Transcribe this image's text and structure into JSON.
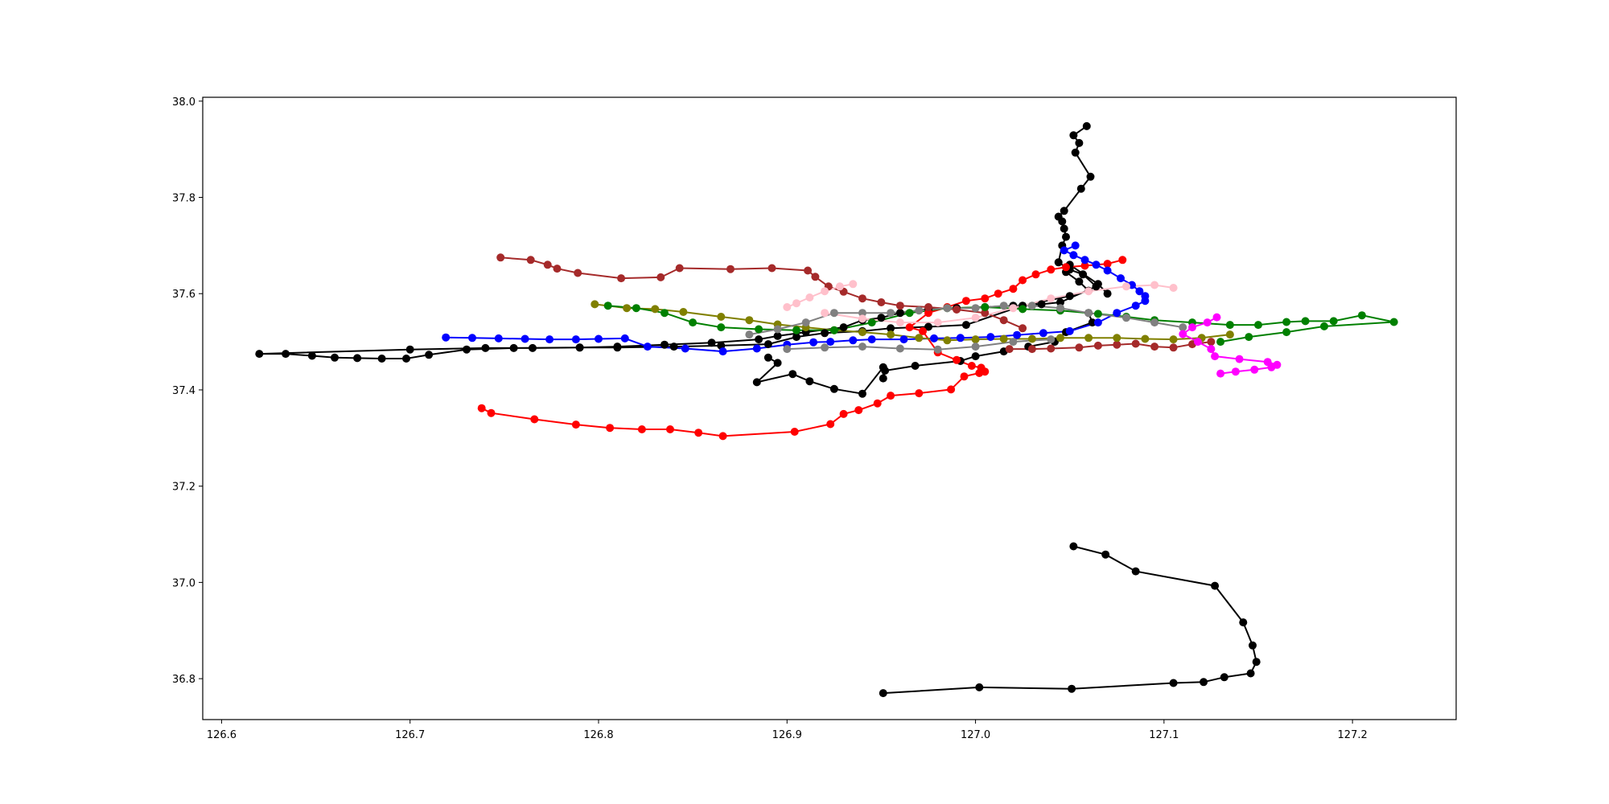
{
  "chart_data": {
    "type": "line",
    "title": "",
    "xlabel": "",
    "ylabel": "",
    "xlim": [
      126.59,
      127.255
    ],
    "ylim": [
      36.715,
      38.008
    ],
    "xticks": [
      126.6,
      126.7,
      126.8,
      126.9,
      127.0,
      127.1,
      127.2
    ],
    "yticks": [
      36.8,
      37.0,
      37.2,
      37.4,
      37.6,
      37.8,
      38.0
    ],
    "xtick_labels": [
      "126.6",
      "126.7",
      "126.8",
      "126.9",
      "127.0",
      "127.1",
      "127.2"
    ],
    "ytick_labels": [
      "36.8",
      "37.0",
      "37.2",
      "37.4",
      "37.6",
      "37.8",
      "38.0"
    ],
    "grid": false,
    "legend": "none",
    "series": [
      {
        "color": "#000000",
        "x": [
          127.059,
          127.052,
          127.055,
          127.053,
          127.061,
          127.056,
          127.047,
          127.044,
          127.046,
          127.047,
          127.048,
          127.046,
          127.044,
          127.05,
          127.057,
          127.064,
          127.045,
          127.035,
          127.02,
          127.005,
          126.99,
          126.975,
          126.96,
          126.95,
          126.94,
          126.93,
          126.91,
          126.895,
          126.885,
          126.86,
          126.835,
          126.81,
          126.79,
          126.765,
          126.74,
          126.7,
          126.62,
          126.634,
          126.648,
          126.66,
          126.672,
          126.685,
          126.698,
          126.71,
          126.73,
          126.755,
          126.79,
          126.81,
          126.84,
          126.865,
          126.89,
          126.905,
          126.92,
          126.94,
          126.955,
          126.975,
          126.995,
          127.025,
          127.05,
          127.06,
          127.055,
          127.048,
          127.05,
          127.065,
          127.07,
          127.06,
          127.062,
          127.048,
          127.042,
          127.028,
          127.015,
          127.0,
          126.992,
          126.968,
          126.952,
          126.951,
          126.951,
          126.94,
          126.925,
          126.912,
          126.903,
          126.884,
          126.895,
          126.89,
          126.951,
          127.002,
          127.051,
          127.105,
          127.121,
          127.132,
          127.146,
          127.149,
          127.147,
          127.142,
          127.127,
          127.085,
          127.069,
          127.052
        ],
        "y": [
          37.948,
          37.929,
          37.913,
          37.893,
          37.843,
          37.818,
          37.772,
          37.76,
          37.75,
          37.735,
          37.718,
          37.7,
          37.665,
          37.65,
          37.64,
          37.615,
          37.582,
          37.578,
          37.575,
          37.572,
          37.57,
          37.568,
          37.56,
          37.55,
          37.545,
          37.53,
          37.52,
          37.512,
          37.505,
          37.498,
          37.494,
          37.49,
          37.488,
          37.487,
          37.487,
          37.484,
          37.475,
          37.475,
          37.471,
          37.467,
          37.466,
          37.465,
          37.465,
          37.473,
          37.484,
          37.487,
          37.488,
          37.488,
          37.49,
          37.492,
          37.495,
          37.51,
          37.518,
          37.522,
          37.528,
          37.531,
          37.535,
          37.575,
          37.595,
          37.606,
          37.625,
          37.645,
          37.66,
          37.62,
          37.6,
          37.56,
          37.54,
          37.52,
          37.5,
          37.49,
          37.48,
          37.47,
          37.46,
          37.45,
          37.44,
          37.424,
          37.447,
          37.392,
          37.402,
          37.418,
          37.433,
          37.416,
          37.456,
          37.467,
          36.77,
          36.782,
          36.779,
          36.791,
          36.793,
          36.803,
          36.811,
          36.835,
          36.869,
          36.917,
          36.993,
          37.023,
          37.058,
          37.075
        ],
        "segments": [
          [
            0,
            65
          ],
          [
            65,
            70
          ],
          [
            70,
            84
          ],
          [
            84,
            98
          ]
        ]
      },
      {
        "color": "#ff0000",
        "x": [
          126.738,
          126.743,
          126.766,
          126.788,
          126.806,
          126.823,
          126.838,
          126.853,
          126.866,
          126.904,
          126.923,
          126.93,
          126.938,
          126.948,
          126.955,
          126.97,
          126.987,
          126.994,
          127.002,
          127.005,
          127.003,
          126.998,
          126.99,
          126.98,
          126.972,
          126.965,
          126.975,
          126.985,
          126.995,
          127.005,
          127.012,
          127.02,
          127.025,
          127.032,
          127.04,
          127.048,
          127.058,
          127.07,
          127.078
        ],
        "y": [
          37.362,
          37.352,
          37.339,
          37.328,
          37.321,
          37.318,
          37.318,
          37.311,
          37.304,
          37.313,
          37.329,
          37.35,
          37.358,
          37.372,
          37.388,
          37.393,
          37.401,
          37.428,
          37.435,
          37.438,
          37.446,
          37.45,
          37.462,
          37.478,
          37.522,
          37.53,
          37.56,
          37.572,
          37.585,
          37.59,
          37.6,
          37.61,
          37.628,
          37.64,
          37.65,
          37.655,
          37.658,
          37.662,
          37.67
        ],
        "segments": [
          [
            0,
            39
          ]
        ]
      },
      {
        "color": "#0000ff",
        "x": [
          126.719,
          126.733,
          126.747,
          126.761,
          126.774,
          126.788,
          126.8,
          126.814,
          126.826,
          126.846,
          126.866,
          126.884,
          126.9,
          126.914,
          126.923,
          126.935,
          126.945,
          126.962,
          126.978,
          126.992,
          127.008,
          127.022,
          127.036,
          127.05,
          127.065,
          127.075,
          127.085,
          127.09,
          127.09,
          127.087,
          127.083,
          127.077,
          127.07,
          127.064,
          127.058,
          127.052,
          127.047,
          127.053
        ],
        "y": [
          37.509,
          37.508,
          37.507,
          37.506,
          37.505,
          37.505,
          37.506,
          37.507,
          37.49,
          37.486,
          37.48,
          37.486,
          37.494,
          37.499,
          37.5,
          37.503,
          37.505,
          37.505,
          37.507,
          37.508,
          37.51,
          37.514,
          37.518,
          37.522,
          37.54,
          37.56,
          37.575,
          37.585,
          37.595,
          37.605,
          37.618,
          37.632,
          37.648,
          37.66,
          37.67,
          37.68,
          37.69,
          37.7
        ],
        "segments": [
          [
            0,
            38
          ]
        ]
      },
      {
        "color": "#a52a2a",
        "x": [
          126.748,
          126.764,
          126.773,
          126.778,
          126.789,
          126.812,
          126.833,
          126.843,
          126.87,
          126.892,
          126.911,
          126.915,
          126.922,
          126.93,
          126.94,
          126.95,
          126.96,
          126.975,
          126.99,
          127.005,
          127.015,
          127.025,
          127.018,
          127.03,
          127.04,
          127.055,
          127.065,
          127.075,
          127.085,
          127.095,
          127.105,
          127.115,
          127.125
        ],
        "y": [
          37.675,
          37.67,
          37.66,
          37.652,
          37.643,
          37.632,
          37.634,
          37.653,
          37.651,
          37.653,
          37.648,
          37.635,
          37.615,
          37.604,
          37.59,
          37.582,
          37.575,
          37.572,
          37.567,
          37.56,
          37.545,
          37.528,
          37.485,
          37.485,
          37.486,
          37.488,
          37.492,
          37.494,
          37.496,
          37.49,
          37.488,
          37.495,
          37.5
        ],
        "segments": [
          [
            0,
            22
          ],
          [
            22,
            33
          ]
        ]
      },
      {
        "color": "#808000",
        "x": [
          126.798,
          126.815,
          126.83,
          126.845,
          126.865,
          126.88,
          126.895,
          126.91,
          126.925,
          126.94,
          126.955,
          126.97,
          126.985,
          127.0,
          127.015,
          127.03,
          127.045,
          127.06,
          127.075,
          127.09,
          127.105,
          127.12,
          127.135
        ],
        "y": [
          37.578,
          37.57,
          37.568,
          37.562,
          37.552,
          37.545,
          37.536,
          37.53,
          37.524,
          37.52,
          37.515,
          37.508,
          37.503,
          37.505,
          37.506,
          37.506,
          37.508,
          37.508,
          37.508,
          37.506,
          37.505,
          37.508,
          37.515
        ],
        "segments": [
          [
            0,
            23
          ]
        ]
      },
      {
        "color": "#008000",
        "x": [
          126.805,
          126.82,
          126.835,
          126.85,
          126.865,
          126.885,
          126.905,
          126.925,
          126.945,
          126.965,
          126.985,
          127.005,
          127.025,
          127.045,
          127.065,
          127.08,
          127.095,
          127.115,
          127.135,
          127.15,
          127.165,
          127.175,
          127.19,
          127.205,
          127.222,
          127.185,
          127.165,
          127.145,
          127.13
        ],
        "y": [
          37.575,
          37.57,
          37.56,
          37.54,
          37.53,
          37.526,
          37.524,
          37.524,
          37.54,
          37.56,
          37.57,
          37.572,
          37.568,
          37.565,
          37.558,
          37.552,
          37.545,
          37.54,
          37.535,
          37.535,
          37.541,
          37.543,
          37.543,
          37.555,
          37.541,
          37.532,
          37.52,
          37.51,
          37.5
        ],
        "segments": [
          [
            0,
            25
          ],
          [
            24,
            29
          ]
        ]
      },
      {
        "color": "#808080",
        "x": [
          126.88,
          126.895,
          126.91,
          126.925,
          126.94,
          126.955,
          126.97,
          126.985,
          127.0,
          127.015,
          127.03,
          127.045,
          127.06,
          127.08,
          127.095,
          127.11,
          126.9,
          126.92,
          126.94,
          126.96,
          126.98,
          127.0,
          127.02,
          127.04
        ],
        "y": [
          37.515,
          37.526,
          37.54,
          37.56,
          37.56,
          37.56,
          37.565,
          37.57,
          37.57,
          37.575,
          37.575,
          37.57,
          37.56,
          37.55,
          37.54,
          37.53,
          37.485,
          37.488,
          37.49,
          37.486,
          37.484,
          37.49,
          37.5,
          37.505
        ],
        "segments": [
          [
            0,
            16
          ],
          [
            16,
            24
          ]
        ]
      },
      {
        "color": "#ffc0cb",
        "x": [
          126.9,
          126.905,
          126.912,
          126.92,
          126.928,
          126.935,
          126.92,
          126.94,
          126.96,
          126.98,
          127.0,
          127.02,
          127.04,
          127.06,
          127.08,
          127.095,
          127.105
        ],
        "y": [
          37.572,
          37.58,
          37.592,
          37.605,
          37.615,
          37.62,
          37.56,
          37.548,
          37.54,
          37.54,
          37.55,
          37.57,
          37.59,
          37.605,
          37.615,
          37.618,
          37.612
        ],
        "segments": [
          [
            0,
            6
          ],
          [
            6,
            17
          ]
        ]
      },
      {
        "color": "#ff00ff",
        "x": [
          127.128,
          127.123,
          127.115,
          127.11,
          127.118,
          127.125,
          127.127,
          127.14,
          127.155,
          127.16,
          127.157,
          127.148,
          127.138,
          127.13
        ],
        "y": [
          37.551,
          37.54,
          37.53,
          37.516,
          37.5,
          37.485,
          37.47,
          37.464,
          37.458,
          37.452,
          37.447,
          37.442,
          37.438,
          37.434
        ],
        "segments": [
          [
            0,
            14
          ]
        ]
      }
    ]
  }
}
